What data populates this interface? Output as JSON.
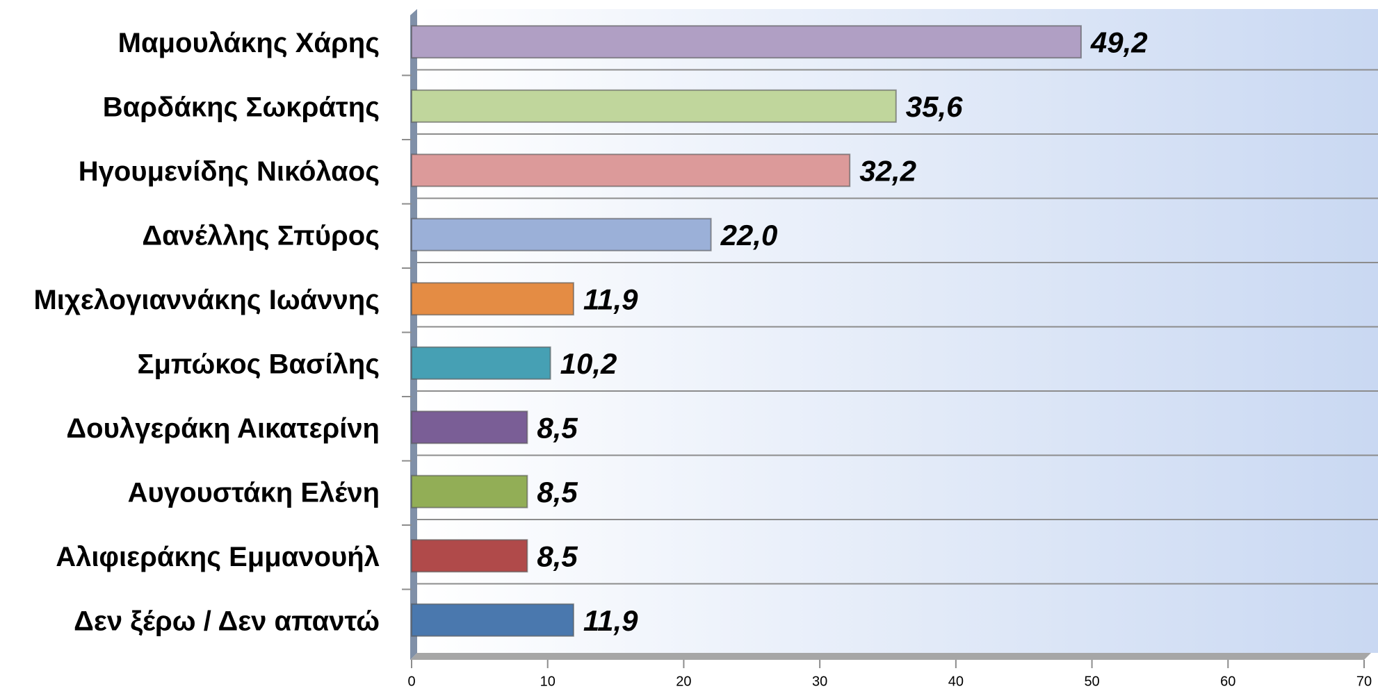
{
  "chart_data": {
    "type": "bar",
    "orientation": "horizontal",
    "categories": [
      "Μαμουλάκης Χάρης",
      "Βαρδάκης Σωκράτης",
      "Ηγουμενίδης Νικόλαος",
      "Δανέλλης Σπύρος",
      "Μιχελογιαννάκης Ιωάννης",
      "Σμπώκος Βασίλης",
      "Δουλγεράκη Αικατερίνη",
      "Αυγουστάκη Ελένη",
      "Αλιφιεράκης Εμμανουήλ",
      "Δεν ξέρω / Δεν απαντώ"
    ],
    "values": [
      49.2,
      35.6,
      32.2,
      22.0,
      11.9,
      10.2,
      8.5,
      8.5,
      8.5,
      11.9
    ],
    "value_labels": [
      "49,2",
      "35,6",
      "32,2",
      "22,0",
      "11,9",
      "10,2",
      "8,5",
      "8,5",
      "8,5",
      "11,9"
    ],
    "colors": [
      "#b09fc4",
      "#c0d69c",
      "#dc9a9a",
      "#9bb0d8",
      "#e48c44",
      "#46a0b4",
      "#7a5e96",
      "#92ae56",
      "#b04a4a",
      "#4a78ae"
    ],
    "xlim": [
      0,
      70
    ],
    "xticks": [
      0,
      10,
      20,
      30,
      40,
      50,
      60,
      70
    ]
  }
}
